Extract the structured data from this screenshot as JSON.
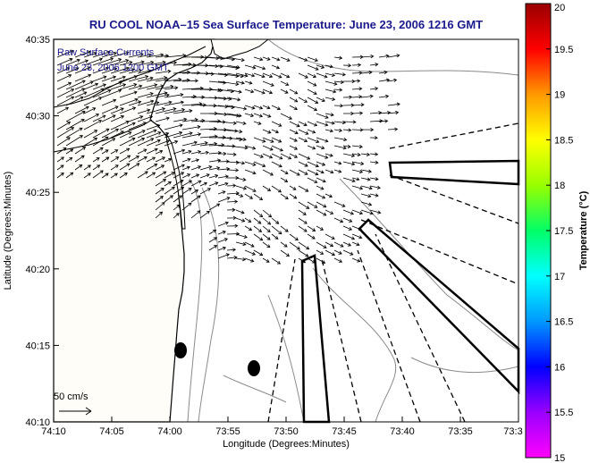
{
  "title": "RU COOL   NOAA–15  Sea Surface Temperature:  June 23, 2006 1216 GMT",
  "legend": {
    "line1": "Raw Surface Currents",
    "line2": "June 23, 2006 1200 GMT",
    "scale_label": "50 cm/s"
  },
  "axes": {
    "xlabel": "Longitude (Degrees:Minutes)",
    "ylabel": "Latitude (Degrees:Minutes)",
    "xticks": [
      "74:10",
      "74:05",
      "74:00",
      "73:55",
      "73:50",
      "73:45",
      "73:40",
      "73:35",
      "73:3"
    ],
    "yticks": [
      "40:35",
      "40:30",
      "40:25",
      "40:20",
      "40:15",
      "40:10"
    ]
  },
  "colorbar": {
    "label": "Temperature (°C)",
    "ticks": [
      "20",
      "19.5",
      "19",
      "18.5",
      "18",
      "17.5",
      "17",
      "16.5",
      "16",
      "15.5",
      "15"
    ],
    "colors": [
      "#ff00ff",
      "#9900ff",
      "#0000ff",
      "#0099ff",
      "#00ffff",
      "#00ff66",
      "#99ff00",
      "#ffff00",
      "#ff9900",
      "#ff0000",
      "#990000"
    ]
  },
  "colors": {
    "title": "#1a1a8c",
    "land": "#fffdf8",
    "coast": "#000000",
    "bathymetry": "#888888"
  }
}
